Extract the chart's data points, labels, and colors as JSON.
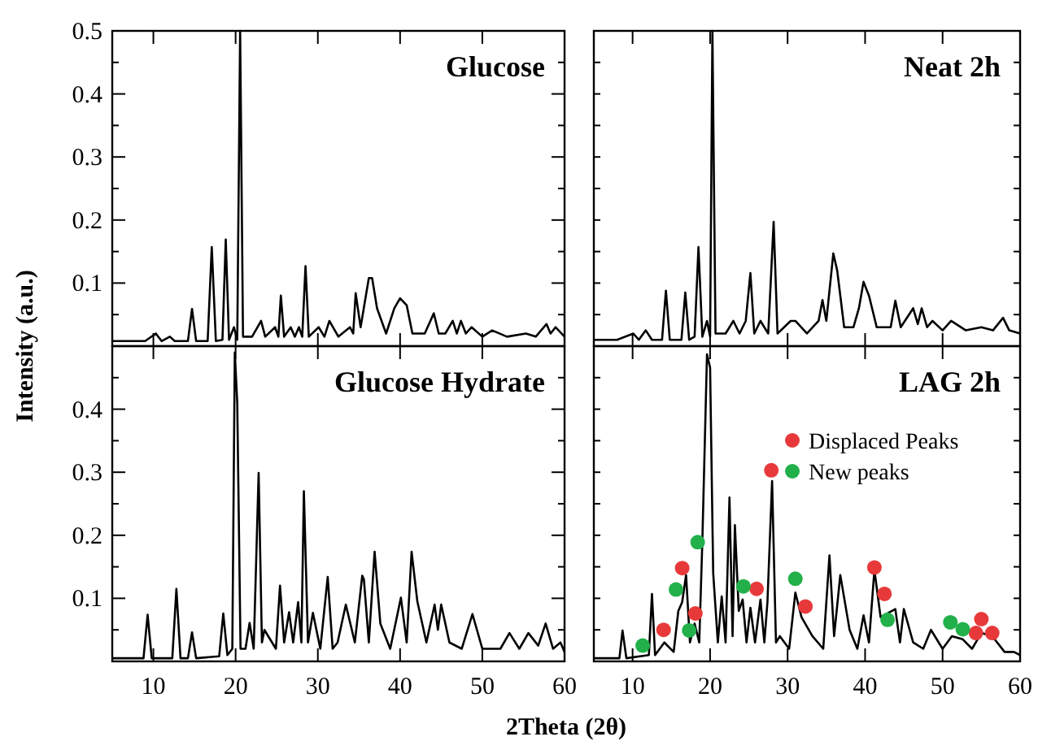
{
  "chart_data": [
    {
      "type": "line",
      "title": "Glucose",
      "ylabel": "Intensity (a.u.)",
      "tick_labels": "y",
      "xlim": [
        5,
        60
      ],
      "ylim": [
        0,
        0.5
      ],
      "xticks": [
        10,
        20,
        30,
        40,
        50,
        60
      ],
      "yticks": [
        {
          "value": 0.05,
          "label": null
        },
        0.1,
        {
          "value": 0.15,
          "label": null
        },
        0.2,
        {
          "value": 0.25,
          "label": null
        },
        0.3,
        {
          "value": 0.35,
          "label": null
        },
        0.4,
        {
          "value": 0.45,
          "label": null
        },
        0.5
      ],
      "grid": false,
      "x": [
        5,
        7,
        9,
        10.3,
        11,
        12,
        12.6,
        14.2,
        14.7,
        15.2,
        16.6,
        17.1,
        17.6,
        18.4,
        18.8,
        19.2,
        19.8,
        20.2,
        20.55,
        20.9,
        22,
        23.1,
        23.6,
        24.8,
        25.2,
        25.5,
        25.9,
        26.7,
        27.2,
        27.7,
        28.1,
        28.5,
        28.9,
        30.1,
        30.8,
        31.4,
        32.5,
        33.9,
        34.3,
        34.6,
        35.2,
        36.2,
        36.6,
        37.2,
        38.3,
        39.3,
        40.0,
        40.8,
        41.5,
        43,
        44.1,
        44.7,
        45.5,
        46.4,
        46.9,
        47.4,
        48,
        48.7,
        50,
        51.2,
        53,
        55.3,
        56.5,
        57.8,
        58.3,
        58.9,
        60
      ],
      "series": [
        {
          "color": "#000000",
          "values": [
            0.008,
            0.008,
            0.008,
            0.02,
            0.008,
            0.015,
            0.008,
            0.008,
            0.059,
            0.008,
            0.008,
            0.157,
            0.008,
            0.01,
            0.169,
            0.01,
            0.03,
            0.01,
            0.5,
            0.015,
            0.015,
            0.04,
            0.015,
            0.03,
            0.015,
            0.08,
            0.015,
            0.03,
            0.015,
            0.03,
            0.015,
            0.127,
            0.015,
            0.03,
            0.015,
            0.04,
            0.015,
            0.03,
            0.02,
            0.084,
            0.03,
            0.108,
            0.108,
            0.06,
            0.02,
            0.06,
            0.076,
            0.065,
            0.02,
            0.02,
            0.052,
            0.02,
            0.02,
            0.04,
            0.02,
            0.04,
            0.02,
            0.03,
            0.015,
            0.025,
            0.015,
            0.02,
            0.015,
            0.035,
            0.02,
            0.03,
            0.015
          ]
        }
      ]
    },
    {
      "type": "line",
      "title": "Neat 2h",
      "tick_labels": false,
      "xlim": [
        5,
        60
      ],
      "ylim": [
        0,
        0.5
      ],
      "xticks": [
        10,
        20,
        30,
        40,
        50,
        60
      ],
      "yticks": [
        {
          "value": 0.05,
          "label": null
        },
        {
          "value": 0.1,
          "label": null
        },
        {
          "value": 0.15,
          "label": null
        },
        {
          "value": 0.2,
          "label": null
        },
        {
          "value": 0.25,
          "label": null
        },
        {
          "value": 0.3,
          "label": null
        },
        {
          "value": 0.35,
          "label": null
        },
        {
          "value": 0.4,
          "label": null
        },
        {
          "value": 0.45,
          "label": null
        }
      ],
      "grid": false,
      "x": [
        5,
        8,
        10.1,
        10.8,
        11.7,
        12.5,
        13.8,
        14.3,
        14.8,
        16.3,
        16.8,
        17.3,
        18.0,
        18.5,
        19.0,
        19.6,
        20.0,
        20.3,
        20.7,
        22,
        23.0,
        23.8,
        24.6,
        25.2,
        25.7,
        26.5,
        27.5,
        28.2,
        28.7,
        30.4,
        31.0,
        32.5,
        34.0,
        34.5,
        35.0,
        35.9,
        36.4,
        37.3,
        38.5,
        39.2,
        39.8,
        40.5,
        41.5,
        43.3,
        43.9,
        44.6,
        46.2,
        46.8,
        47.3,
        48.0,
        48.7,
        50,
        51.1,
        53,
        55.0,
        56.5,
        57.8,
        58.6,
        60
      ],
      "series": [
        {
          "color": "#000000",
          "values": [
            0.01,
            0.01,
            0.02,
            0.01,
            0.025,
            0.01,
            0.01,
            0.088,
            0.01,
            0.01,
            0.085,
            0.01,
            0.015,
            0.157,
            0.015,
            0.04,
            0.015,
            0.5,
            0.02,
            0.02,
            0.04,
            0.02,
            0.04,
            0.116,
            0.02,
            0.04,
            0.02,
            0.197,
            0.02,
            0.04,
            0.04,
            0.02,
            0.04,
            0.073,
            0.04,
            0.147,
            0.12,
            0.03,
            0.03,
            0.06,
            0.102,
            0.08,
            0.03,
            0.03,
            0.072,
            0.03,
            0.06,
            0.035,
            0.06,
            0.03,
            0.04,
            0.025,
            0.04,
            0.025,
            0.03,
            0.025,
            0.045,
            0.025,
            0.02
          ]
        }
      ]
    },
    {
      "type": "line",
      "title": "Glucose Hydrate",
      "xlabel": "2Theta (2θ)",
      "xlim": [
        5,
        60
      ],
      "ylim": [
        0,
        0.5
      ],
      "xticks": [
        10,
        20,
        30,
        40,
        50,
        60
      ],
      "yticks": [
        {
          "value": 0.05,
          "label": null
        },
        0.1,
        {
          "value": 0.15,
          "label": null
        },
        0.2,
        {
          "value": 0.25,
          "label": null
        },
        0.3,
        {
          "value": 0.35,
          "label": null
        },
        0.4,
        {
          "value": 0.45,
          "label": null
        }
      ],
      "grid": false,
      "x": [
        5,
        8.8,
        9.3,
        9.8,
        12.3,
        12.8,
        13.3,
        14.2,
        14.7,
        15.2,
        18.0,
        18.5,
        19.0,
        19.6,
        19.9,
        20.2,
        20.6,
        21.2,
        21.7,
        22.2,
        22.8,
        23.2,
        23.5,
        24.9,
        25.4,
        25.9,
        26.5,
        27.0,
        27.6,
        28.0,
        28.3,
        28.8,
        29.4,
        30.3,
        31.2,
        31.8,
        32.4,
        33.4,
        34.5,
        35.4,
        35.6,
        36.2,
        36.9,
        37.6,
        38.8,
        40.1,
        40.8,
        41.4,
        42.1,
        43.2,
        44.2,
        44.6,
        45.0,
        46.0,
        47.5,
        48.8,
        50,
        51.0,
        52.2,
        53.3,
        54.5,
        55.6,
        56.8,
        57.7,
        58.6,
        59.5,
        60
      ],
      "series": [
        {
          "color": "#000000",
          "values": [
            0.005,
            0.005,
            0.074,
            0.005,
            0.005,
            0.115,
            0.005,
            0.005,
            0.046,
            0.005,
            0.008,
            0.076,
            0.01,
            0.02,
            0.49,
            0.41,
            0.02,
            0.02,
            0.061,
            0.02,
            0.299,
            0.03,
            0.05,
            0.02,
            0.12,
            0.03,
            0.078,
            0.03,
            0.094,
            0.03,
            0.27,
            0.03,
            0.077,
            0.02,
            0.134,
            0.02,
            0.03,
            0.09,
            0.03,
            0.136,
            0.13,
            0.03,
            0.174,
            0.06,
            0.02,
            0.101,
            0.03,
            0.174,
            0.095,
            0.03,
            0.09,
            0.05,
            0.09,
            0.03,
            0.02,
            0.075,
            0.02,
            0.02,
            0.02,
            0.045,
            0.02,
            0.045,
            0.025,
            0.06,
            0.02,
            0.03,
            0.015
          ]
        }
      ]
    },
    {
      "type": "line",
      "title": "LAG 2h",
      "tick_labels": "x",
      "legend": "top right",
      "xlim": [
        5,
        60
      ],
      "ylim": [
        0,
        0.5
      ],
      "xticks": [
        10,
        20,
        30,
        40,
        50,
        60
      ],
      "yticks": [
        {
          "value": 0.05,
          "label": null
        },
        {
          "value": 0.1,
          "label": null
        },
        {
          "value": 0.15,
          "label": null
        },
        {
          "value": 0.2,
          "label": null
        },
        {
          "value": 0.25,
          "label": null
        },
        {
          "value": 0.3,
          "label": null
        },
        {
          "value": 0.35,
          "label": null
        },
        {
          "value": 0.4,
          "label": null
        },
        {
          "value": 0.45,
          "label": null
        }
      ],
      "grid": false,
      "x": [
        5,
        8.3,
        8.7,
        9.2,
        12.1,
        12.5,
        12.9,
        14.1,
        15.3,
        15.9,
        16.4,
        16.9,
        17.4,
        18.0,
        18.6,
        19.0,
        19.6,
        20.0,
        20.4,
        21.0,
        21.5,
        22.0,
        22.5,
        22.9,
        23.2,
        23.7,
        24.2,
        24.7,
        25.2,
        25.8,
        26.5,
        27.0,
        27.4,
        28.0,
        28.5,
        29.0,
        30.2,
        31.0,
        31.8,
        33.2,
        34.6,
        35.4,
        36.0,
        36.8,
        38.0,
        39.0,
        39.8,
        40.5,
        41.2,
        42.0,
        43.1,
        43.9,
        44.5,
        45.0,
        46.2,
        47.5,
        48.5,
        50,
        51.2,
        52.6,
        53.8,
        55.0,
        56.4,
        58,
        59.2,
        60
      ],
      "series": [
        {
          "color": "#000000",
          "values": [
            0.005,
            0.005,
            0.049,
            0.005,
            0.01,
            0.107,
            0.01,
            0.03,
            0.015,
            0.08,
            0.094,
            0.137,
            0.03,
            0.06,
            0.03,
            0.19,
            0.487,
            0.466,
            0.14,
            0.03,
            0.103,
            0.03,
            0.26,
            0.04,
            0.216,
            0.08,
            0.098,
            0.03,
            0.085,
            0.03,
            0.098,
            0.03,
            0.094,
            0.286,
            0.03,
            0.04,
            0.02,
            0.109,
            0.07,
            0.04,
            0.02,
            0.168,
            0.04,
            0.137,
            0.05,
            0.02,
            0.073,
            0.03,
            0.145,
            0.07,
            null,
            0.083,
            0.03,
            0.083,
            0.03,
            0.02,
            0.05,
            0.02,
            0.04,
            0.035,
            0.02,
            0.045,
            0.04,
            0.015,
            0.015,
            0.01
          ]
        },
        {
          "name": "Displaced Peaks",
          "type": "scatter",
          "marker": "circle",
          "color": "#e8393a",
          "x": [
            14.0,
            16.4,
            18.1,
            27.9,
            32.3,
            26.0,
            41.2,
            42.5,
            55.0,
            54.3,
            56.4
          ],
          "values": [
            0.05,
            0.148,
            0.076,
            0.303,
            0.087,
            0.115,
            0.149,
            0.107,
            0.067,
            0.045,
            0.045
          ]
        },
        {
          "name": "New peaks",
          "type": "scatter",
          "marker": "circle",
          "color": "#22b04b",
          "x": [
            11.3,
            15.6,
            17.3,
            18.4,
            24.3,
            31.0,
            42.9,
            51.0,
            52.6
          ],
          "values": [
            0.025,
            0.114,
            0.049,
            0.189,
            0.119,
            0.131,
            0.066,
            0.062,
            0.051
          ]
        }
      ]
    }
  ]
}
